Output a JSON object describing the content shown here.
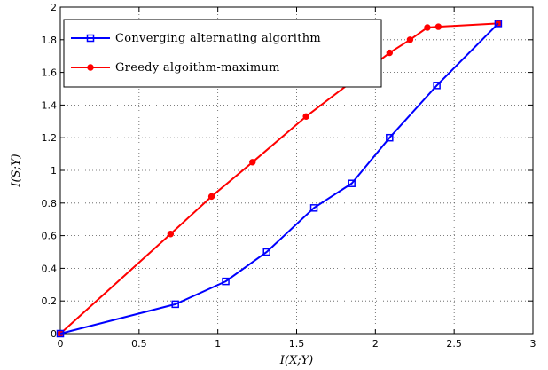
{
  "chart_data": {
    "type": "line",
    "title": "",
    "xlabel": "I(X;Y)",
    "ylabel": "I(S;Y)",
    "xlim": [
      0,
      3
    ],
    "ylim": [
      0,
      2
    ],
    "xticks": [
      "0",
      "0.5",
      "1",
      "1.5",
      "2",
      "2.5",
      "3"
    ],
    "yticks": [
      "0",
      "0.2",
      "0.4",
      "0.6",
      "0.8",
      "1",
      "1.2",
      "1.4",
      "1.6",
      "1.8",
      "2"
    ],
    "grid": true,
    "legend_position": "top-left",
    "series": [
      {
        "name": "Converging alternating algorithm",
        "color": "#0000ff",
        "marker": "square",
        "points": [
          [
            0,
            0
          ],
          [
            0.73,
            0.18
          ],
          [
            1.05,
            0.32
          ],
          [
            1.31,
            0.5
          ],
          [
            1.61,
            0.77
          ],
          [
            1.85,
            0.92
          ],
          [
            2.09,
            1.2
          ],
          [
            2.39,
            1.52
          ],
          [
            2.78,
            1.9
          ]
        ]
      },
      {
        "name": "Greedy algoithm-maximum",
        "color": "#ff0000",
        "marker": "circle",
        "points": [
          [
            0,
            0
          ],
          [
            0.7,
            0.61
          ],
          [
            0.96,
            0.84
          ],
          [
            1.22,
            1.05
          ],
          [
            1.56,
            1.33
          ],
          [
            2.09,
            1.72
          ],
          [
            2.22,
            1.8
          ],
          [
            2.33,
            1.875
          ],
          [
            2.4,
            1.88
          ],
          [
            2.78,
            1.9
          ]
        ]
      }
    ]
  }
}
